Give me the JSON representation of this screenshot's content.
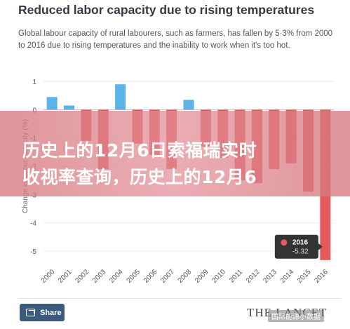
{
  "title": "Reduced labor capacity due to rising temperatures",
  "subtitle": "Global labour capacity of rural labourers, such as farmers, has fallen by 5·3% from 2000 to 2016 due to rising temperatures and the inability to work when it's too hot.",
  "overlay": {
    "line1": "历史上的12月6日索福瑞实时",
    "line2": "收视率查询，历史上的12月6"
  },
  "share_label": "Share",
  "publisher": "THE LANCET",
  "watermark": "国际能源小数据",
  "colors": {
    "positive": "#5bb3e6",
    "negative": "#e35a5e",
    "tooltip_bg": "#333333",
    "tooltip_dot": "#e35a5e"
  },
  "tooltip": {
    "year": "2016",
    "value": "-5.32"
  },
  "chart_data": {
    "type": "bar",
    "title": "Reduced labor capacity due to rising temperatures",
    "ylabel": "Change in labour capacity (%)",
    "xlabel": "",
    "ylim": [
      -5.5,
      1.5
    ],
    "yticks": [
      1,
      0,
      -1,
      -2,
      -3,
      -4,
      -5
    ],
    "grid": true,
    "categories": [
      "2000",
      "2001",
      "2002",
      "2003",
      "2004",
      "2005",
      "2006",
      "2007",
      "2008",
      "2009",
      "2010",
      "2011",
      "2012",
      "2013",
      "2014",
      "2015",
      "2016"
    ],
    "values": [
      0.45,
      0.15,
      -1.1,
      -2.1,
      0.9,
      -1.2,
      -1.6,
      -2.1,
      0.35,
      -1.3,
      -1.7,
      -2.5,
      -2.6,
      -2.1,
      -1.9,
      -2.9,
      -5.32
    ]
  }
}
